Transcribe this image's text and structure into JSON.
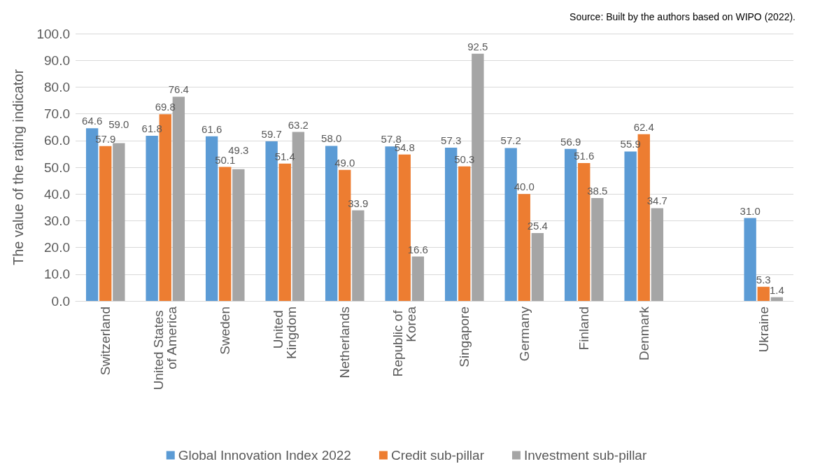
{
  "chart_data": {
    "type": "bar",
    "ylabel": "The value of the rating indicator",
    "annotations": [
      "Source: Built by the authors based on WIPO (2022)."
    ],
    "categories": [
      "Switzerland",
      "United States of America",
      "Sweden",
      "United Kingdom",
      "Netherlands",
      "Republic of Korea",
      "Singapore",
      "Germany",
      "Finland",
      "Denmark",
      null,
      "Ukraine"
    ],
    "series": [
      {
        "name": "Global Innovation Index 2022",
        "color": "#5b9bd5",
        "values": [
          64.6,
          61.8,
          61.6,
          59.7,
          58.0,
          57.8,
          57.3,
          57.2,
          56.9,
          55.9,
          null,
          31.0
        ],
        "value_labels": [
          "64.6",
          "61.8",
          "61.6",
          "59.7",
          "58.0",
          "57.8",
          "57.3",
          "57.2",
          "56.9",
          "55.9",
          null,
          "31.0"
        ]
      },
      {
        "name": "Credit sub-pillar",
        "color": "#ed7d31",
        "values": [
          57.9,
          69.8,
          50.1,
          51.4,
          49.0,
          54.8,
          50.3,
          40.0,
          51.6,
          62.4,
          null,
          5.3
        ],
        "value_labels": [
          "57.9",
          "69.8",
          "50.1",
          "51.4",
          "49.0",
          "54.8",
          "50.3",
          "40.0",
          "51.6",
          "62.4",
          null,
          "5.3"
        ]
      },
      {
        "name": "Investment sub-pillar",
        "color": "#a5a5a5",
        "values": [
          59.0,
          76.4,
          49.3,
          63.2,
          33.9,
          16.6,
          92.5,
          25.4,
          38.5,
          34.7,
          null,
          1.4
        ],
        "value_labels": [
          "59.0",
          "76.4",
          "49.3",
          "63.2",
          "33.9",
          "16.6",
          "92.5",
          "25.4",
          "38.5",
          "34.7",
          null,
          "1.4"
        ]
      }
    ],
    "ylim": [
      0,
      100
    ],
    "yticks": [
      {
        "value": 0,
        "label": "0.0"
      },
      {
        "value": 10,
        "label": "10.0"
      },
      {
        "value": 20,
        "label": "20.0"
      },
      {
        "value": 30,
        "label": "30.0"
      },
      {
        "value": 40,
        "label": "40.0"
      },
      {
        "value": 50,
        "label": "50.0"
      },
      {
        "value": 60,
        "label": "60.0"
      },
      {
        "value": 70,
        "label": "70.0"
      },
      {
        "value": 80,
        "label": "80.0"
      },
      {
        "value": 90,
        "label": "90.0"
      },
      {
        "value": 100,
        "label": "100.0"
      }
    ],
    "grid": "y",
    "legend": "bottom"
  }
}
